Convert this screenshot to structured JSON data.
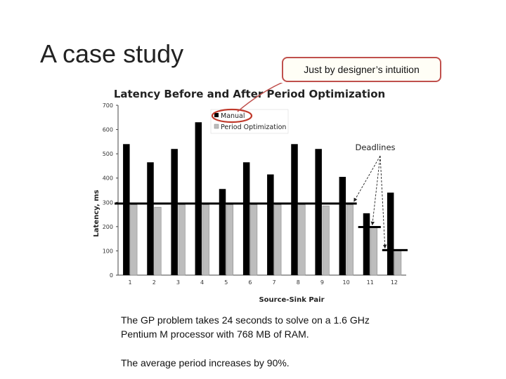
{
  "slide": {
    "title": "A case study",
    "callout": "Just by designer’s intuition",
    "caption_1": "The GP problem takes 24 seconds to solve on a 1.6 GHz Pentium M processor with 768 MB of RAM.",
    "caption_2": "The average period increases by 90%."
  },
  "colors": {
    "manual": "#000000",
    "optimized": "#bdbdbd",
    "callout_border": "#c0504d",
    "legend_circle": "#c0392b"
  },
  "chart_data": {
    "type": "bar",
    "title": "Latency Before and After Period Optimization",
    "xlabel": "Source-Sink Pair",
    "ylabel": "Latency, ms",
    "ylim": [
      0,
      700
    ],
    "yticks": [
      0,
      100,
      200,
      300,
      400,
      500,
      600,
      700
    ],
    "categories": [
      "1",
      "2",
      "3",
      "4",
      "5",
      "6",
      "7",
      "8",
      "9",
      "10",
      "11",
      "12"
    ],
    "series": [
      {
        "name": "Manual",
        "values": [
          540,
          465,
          520,
          630,
          355,
          465,
          415,
          540,
          520,
          405,
          255,
          340
        ]
      },
      {
        "name": "Period Optimization",
        "values": [
          290,
          280,
          290,
          290,
          290,
          290,
          290,
          290,
          285,
          290,
          200,
          100
        ]
      }
    ],
    "deadlines": [
      {
        "from": "1",
        "to": "10",
        "value": 295
      },
      {
        "from": "11",
        "to": "11",
        "value": 198
      },
      {
        "from": "12",
        "to": "12",
        "value": 103
      }
    ],
    "annotation": "Deadlines",
    "legend_position": "top-left",
    "grid": false
  }
}
